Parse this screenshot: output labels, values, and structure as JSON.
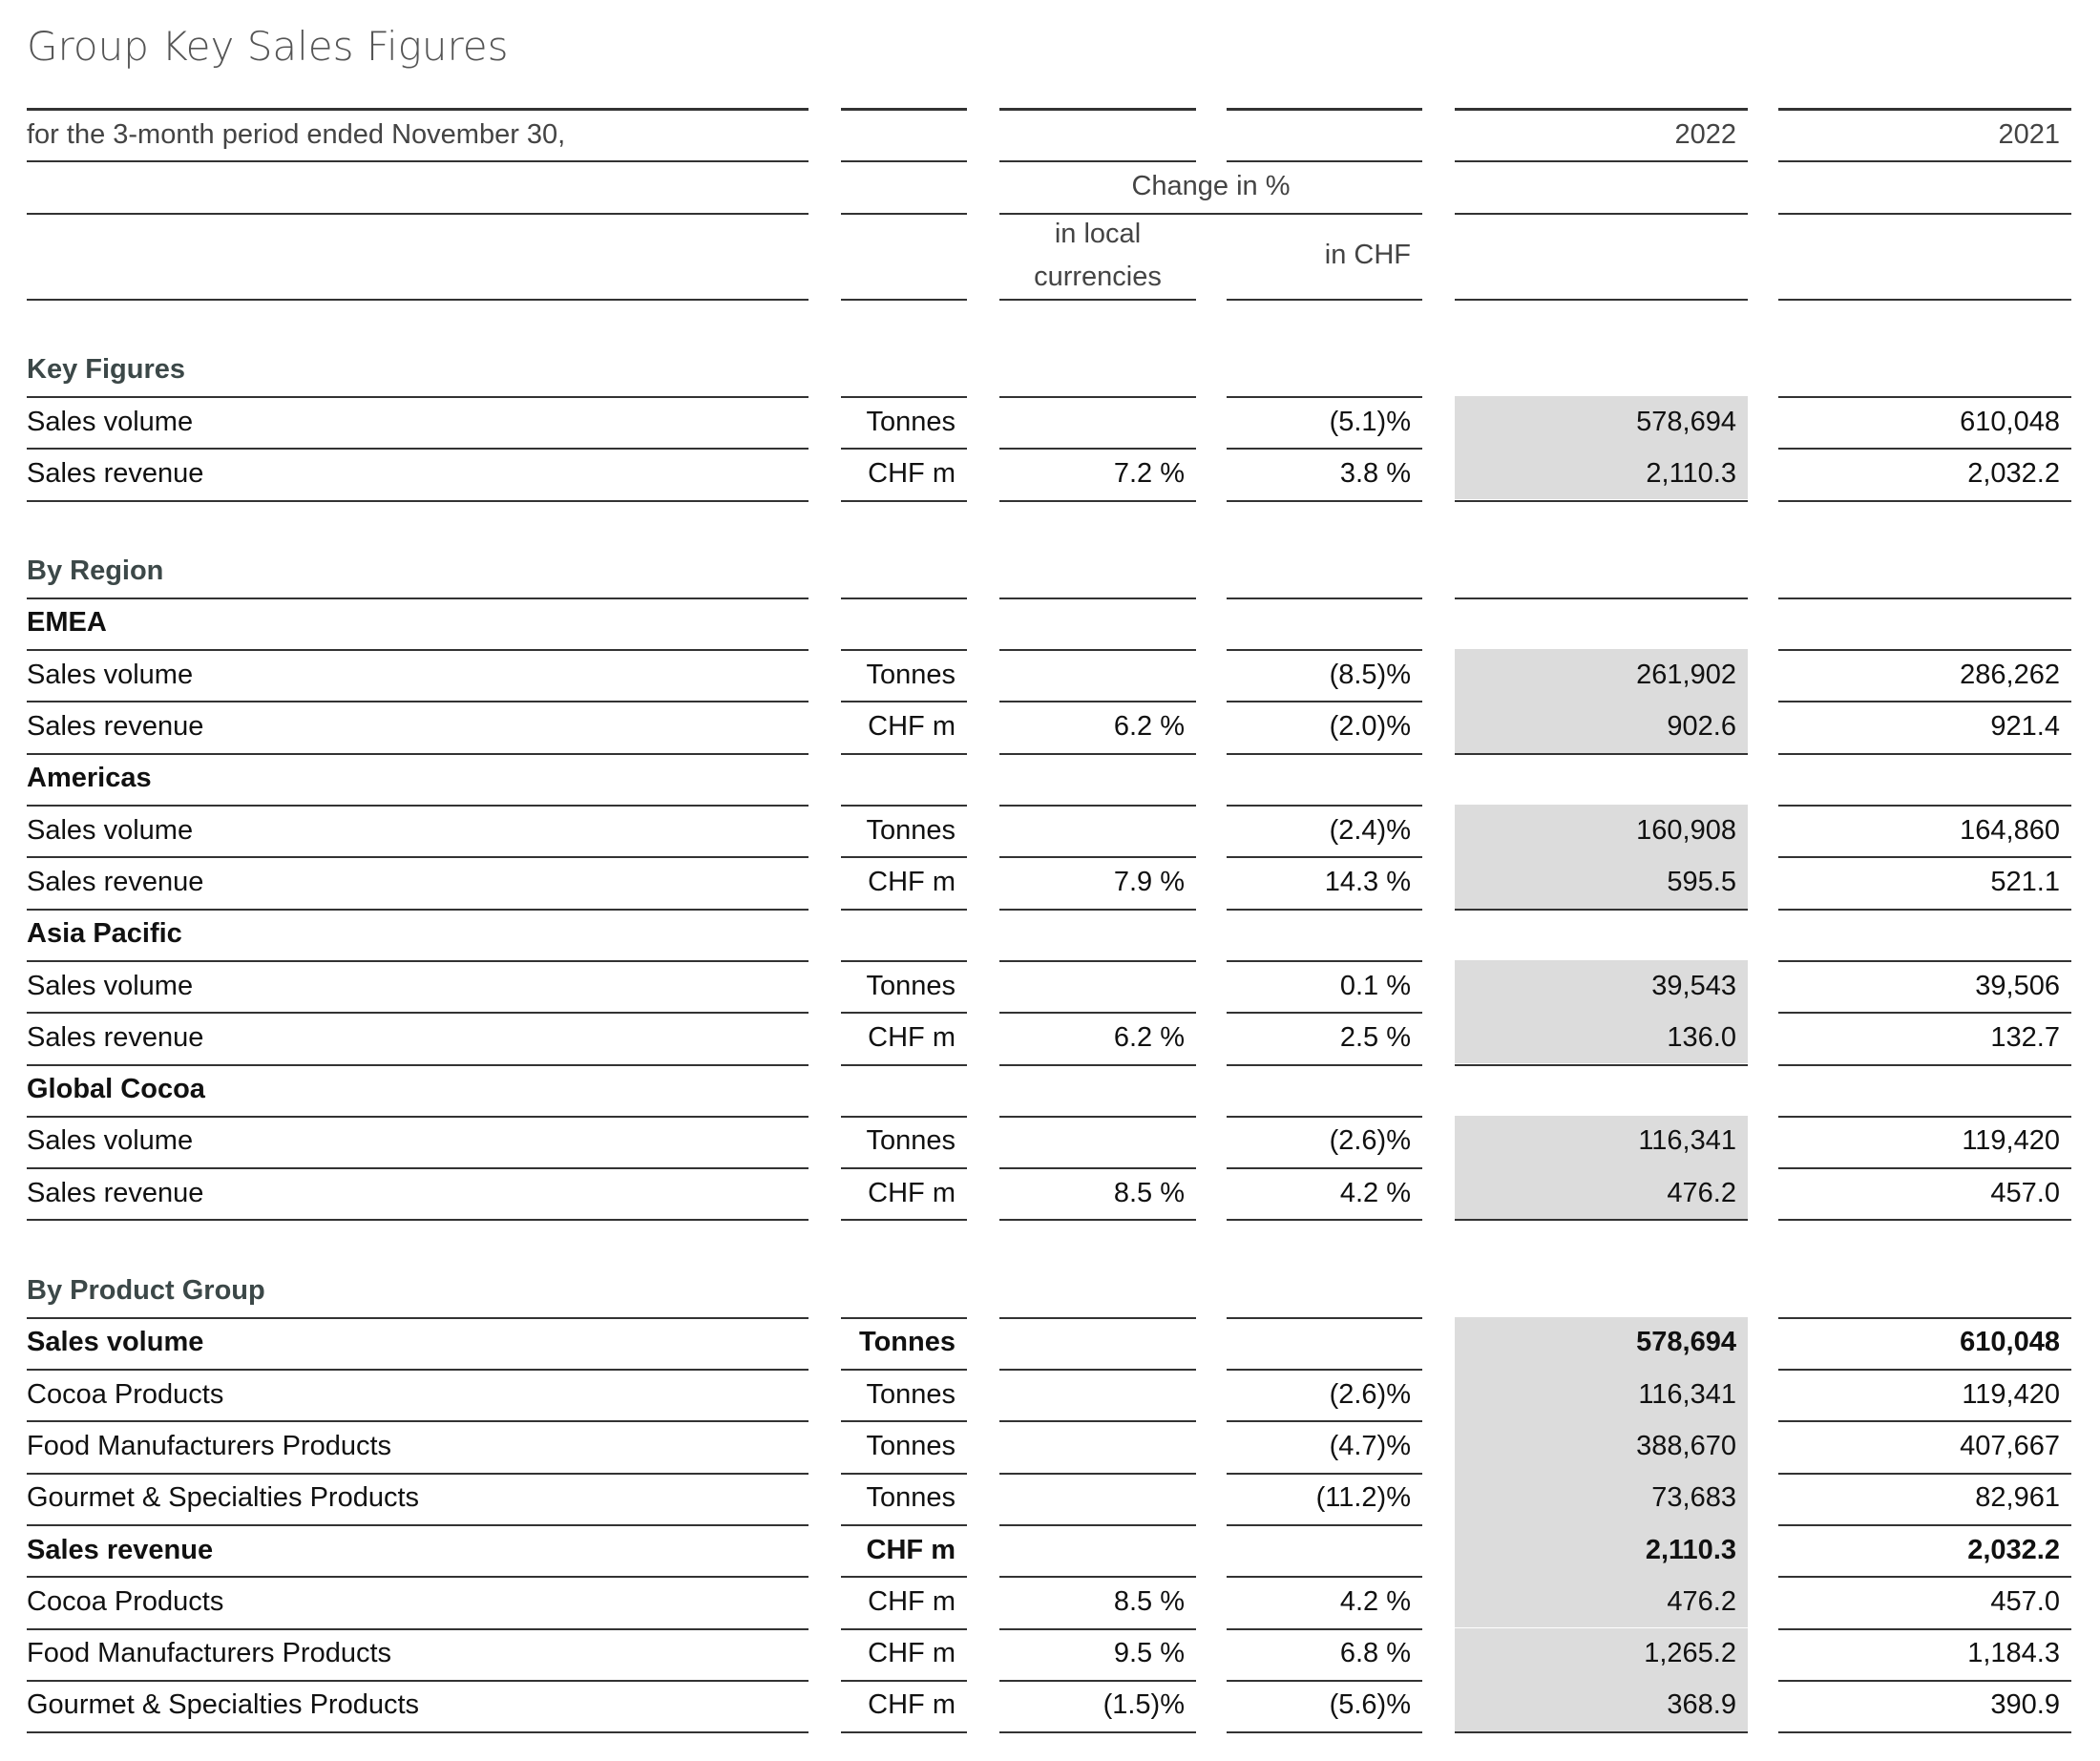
{
  "title": "Group Key Sales Figures",
  "header": {
    "period": "for the 3-month period ended November 30,",
    "current": "2022",
    "prior": "2021",
    "change": "Change in %",
    "local": "in local currencies",
    "chf": "in CHF"
  },
  "sections": [
    {
      "title": "Key Figures",
      "rows": [
        {
          "label": "Sales volume",
          "unit": "Tonnes",
          "chf": "(5.1)%",
          "current": "578,694",
          "prior": "610,048"
        },
        {
          "label": "Sales revenue",
          "unit": "CHF m",
          "local": "7.2 %",
          "chf": "3.8 %",
          "current": "2,110.3",
          "prior": "2,032.2"
        }
      ]
    },
    {
      "title": "By Region",
      "rows": [
        {
          "label": "EMEA",
          "bold": true
        },
        {
          "label": "Sales volume",
          "unit": "Tonnes",
          "chf": "(8.5)%",
          "current": "261,902",
          "prior": "286,262"
        },
        {
          "label": "Sales revenue",
          "unit": "CHF m",
          "local": "6.2 %",
          "chf": "(2.0)%",
          "current": "902.6",
          "prior": "921.4"
        },
        {
          "label": "Americas",
          "bold": true
        },
        {
          "label": "Sales volume",
          "unit": "Tonnes",
          "chf": "(2.4)%",
          "current": "160,908",
          "prior": "164,860"
        },
        {
          "label": "Sales revenue",
          "unit": "CHF m",
          "local": "7.9 %",
          "chf": "14.3 %",
          "current": "595.5",
          "prior": "521.1"
        },
        {
          "label": "Asia Pacific",
          "bold": true
        },
        {
          "label": "Sales volume",
          "unit": "Tonnes",
          "chf": "0.1 %",
          "current": "39,543",
          "prior": "39,506"
        },
        {
          "label": "Sales revenue",
          "unit": "CHF m",
          "local": "6.2 %",
          "chf": "2.5 %",
          "current": "136.0",
          "prior": "132.7"
        },
        {
          "label": "Global Cocoa",
          "bold": true
        },
        {
          "label": "Sales volume",
          "unit": "Tonnes",
          "chf": "(2.6)%",
          "current": "116,341",
          "prior": "119,420"
        },
        {
          "label": "Sales revenue",
          "unit": "CHF m",
          "local": "8.5 %",
          "chf": "4.2 %",
          "current": "476.2",
          "prior": "457.0"
        }
      ]
    },
    {
      "title": "By Product Group",
      "rows": [
        {
          "label": "Sales volume",
          "unit": "Tonnes",
          "current": "578,694",
          "prior": "610,048",
          "bold": true
        },
        {
          "label": "Cocoa Products",
          "unit": "Tonnes",
          "chf": "(2.6)%",
          "current": "116,341",
          "prior": "119,420"
        },
        {
          "label": "Food Manufacturers Products",
          "unit": "Tonnes",
          "chf": "(4.7)%",
          "current": "388,670",
          "prior": "407,667"
        },
        {
          "label": "Gourmet & Specialties Products",
          "unit": "Tonnes",
          "chf": "(11.2)%",
          "current": "73,683",
          "prior": "82,961"
        },
        {
          "label": "Sales revenue",
          "unit": "CHF m",
          "current": "2,110.3",
          "prior": "2,032.2",
          "bold": true
        },
        {
          "label": "Cocoa Products",
          "unit": "CHF m",
          "local": "8.5 %",
          "chf": "4.2 %",
          "current": "476.2",
          "prior": "457.0"
        },
        {
          "label": "Food Manufacturers Products",
          "unit": "CHF m",
          "local": "9.5 %",
          "chf": "6.8 %",
          "current": "1,265.2",
          "prior": "1,184.3"
        },
        {
          "label": "Gourmet & Specialties Products",
          "unit": "CHF m",
          "local": "(1.5)%",
          "chf": "(5.6)%",
          "current": "368.9",
          "prior": "390.9"
        }
      ]
    }
  ]
}
